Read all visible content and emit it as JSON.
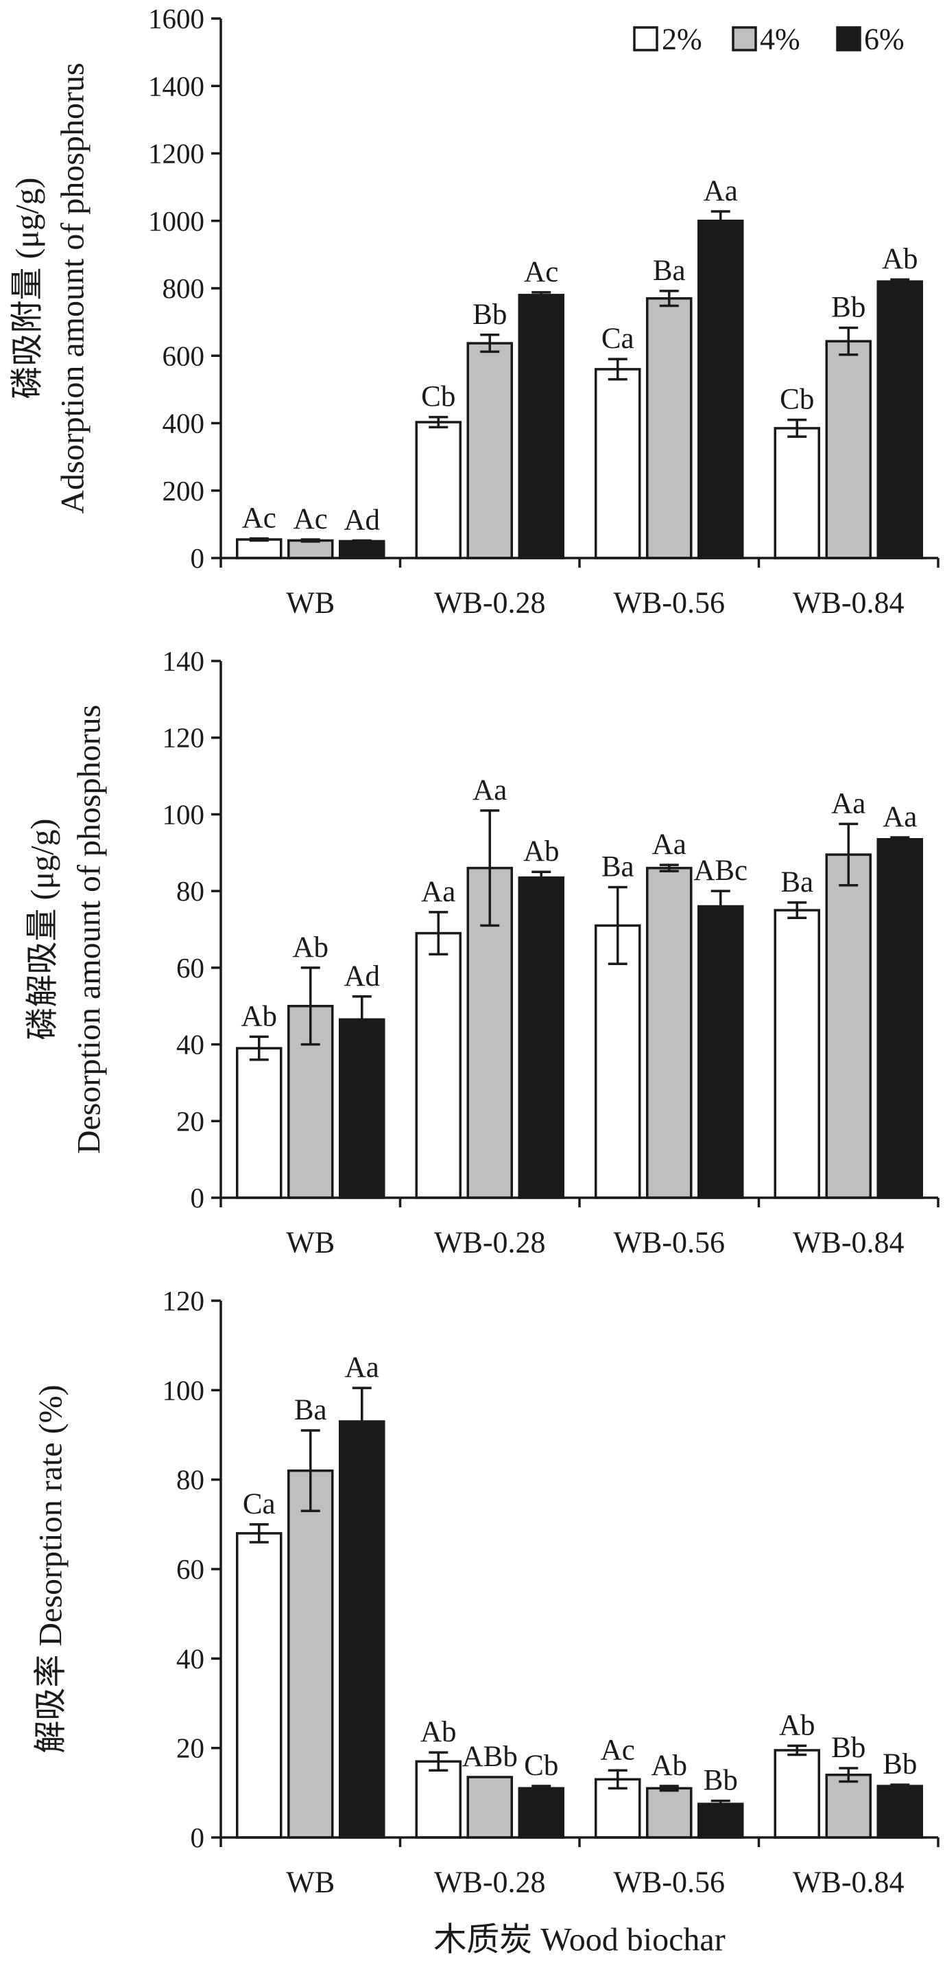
{
  "chart_data": [
    {
      "type": "bar",
      "categories": [
        "WB",
        "WB-0.28",
        "WB-0.56",
        "WB-0.84"
      ],
      "ylabel": [
        "磷吸附量 (μg/g)",
        "Adsorption amount of phosphorus"
      ],
      "xlabel": "",
      "ylim": [
        0,
        1600
      ],
      "yticks": [
        0,
        200,
        400,
        600,
        800,
        1000,
        1200,
        1400,
        1600
      ],
      "grid": false,
      "legend": "top-right",
      "series": [
        {
          "name": "2%",
          "color": "#ffffff",
          "values": [
            55,
            403,
            560,
            385
          ],
          "errors": [
            3,
            15,
            30,
            25
          ],
          "letters": [
            "Ac",
            "Cb",
            "Ca",
            "Cb"
          ]
        },
        {
          "name": "4%",
          "color": "#bfbfbf",
          "values": [
            52,
            637,
            770,
            643
          ],
          "errors": [
            3,
            25,
            22,
            40
          ],
          "letters": [
            "Ac",
            "Bb",
            "Ba",
            "Bb"
          ]
        },
        {
          "name": "6%",
          "color": "#1a1a1a",
          "values": [
            50,
            780,
            1000,
            820
          ],
          "errors": [
            2,
            8,
            28,
            6
          ],
          "letters": [
            "Ad",
            "Ac",
            "Aa",
            "Ab"
          ]
        }
      ]
    },
    {
      "type": "bar",
      "categories": [
        "WB",
        "WB-0.28",
        "WB-0.56",
        "WB-0.84"
      ],
      "ylabel": [
        "磷解吸量 (μg/g)",
        "Desorption amount of phosphorus"
      ],
      "xlabel": "",
      "ylim": [
        0,
        140
      ],
      "yticks": [
        0,
        20,
        40,
        60,
        80,
        100,
        120,
        140
      ],
      "grid": false,
      "series": [
        {
          "name": "2%",
          "color": "#ffffff",
          "values": [
            39,
            69,
            71,
            75
          ],
          "errors": [
            3,
            5.5,
            10,
            2
          ],
          "letters": [
            "Ab",
            "Aa",
            "Ba",
            "Ba"
          ]
        },
        {
          "name": "4%",
          "color": "#bfbfbf",
          "values": [
            50,
            86,
            86,
            89.5
          ],
          "errors": [
            10,
            15,
            0.8,
            8
          ],
          "letters": [
            "Ab",
            "Aa",
            "Aa",
            "Aa"
          ]
        },
        {
          "name": "6%",
          "color": "#1a1a1a",
          "values": [
            46.5,
            83.5,
            76,
            93.5
          ],
          "errors": [
            6,
            1.5,
            4,
            0.5
          ],
          "letters": [
            "Ad",
            "Ab",
            "ABc",
            "Aa"
          ]
        }
      ]
    },
    {
      "type": "bar",
      "categories": [
        "WB",
        "WB-0.28",
        "WB-0.56",
        "WB-0.84"
      ],
      "ylabel": [
        "解吸率 Desorption rate (%)"
      ],
      "xlabel": "木质炭 Wood biochar",
      "ylim": [
        0,
        120
      ],
      "yticks": [
        0,
        20,
        40,
        60,
        80,
        100,
        120
      ],
      "grid": false,
      "series": [
        {
          "name": "2%",
          "color": "#ffffff",
          "values": [
            68,
            17,
            13,
            19.5
          ],
          "errors": [
            2,
            2,
            2,
            1
          ],
          "letters": [
            "Ca",
            "Ab",
            "Ac",
            "Ab"
          ]
        },
        {
          "name": "4%",
          "color": "#bfbfbf",
          "values": [
            82,
            13.5,
            11,
            14
          ],
          "errors": [
            9,
            0,
            0.5,
            1.5
          ],
          "letters": [
            "Ba",
            "ABb",
            "Ab",
            "Bb"
          ]
        },
        {
          "name": "6%",
          "color": "#1a1a1a",
          "values": [
            93,
            11,
            7.5,
            11.5
          ],
          "errors": [
            7.5,
            0.5,
            0.7,
            0.3
          ],
          "letters": [
            "Aa",
            "Cb",
            "Bb",
            "Bb"
          ]
        }
      ]
    }
  ]
}
